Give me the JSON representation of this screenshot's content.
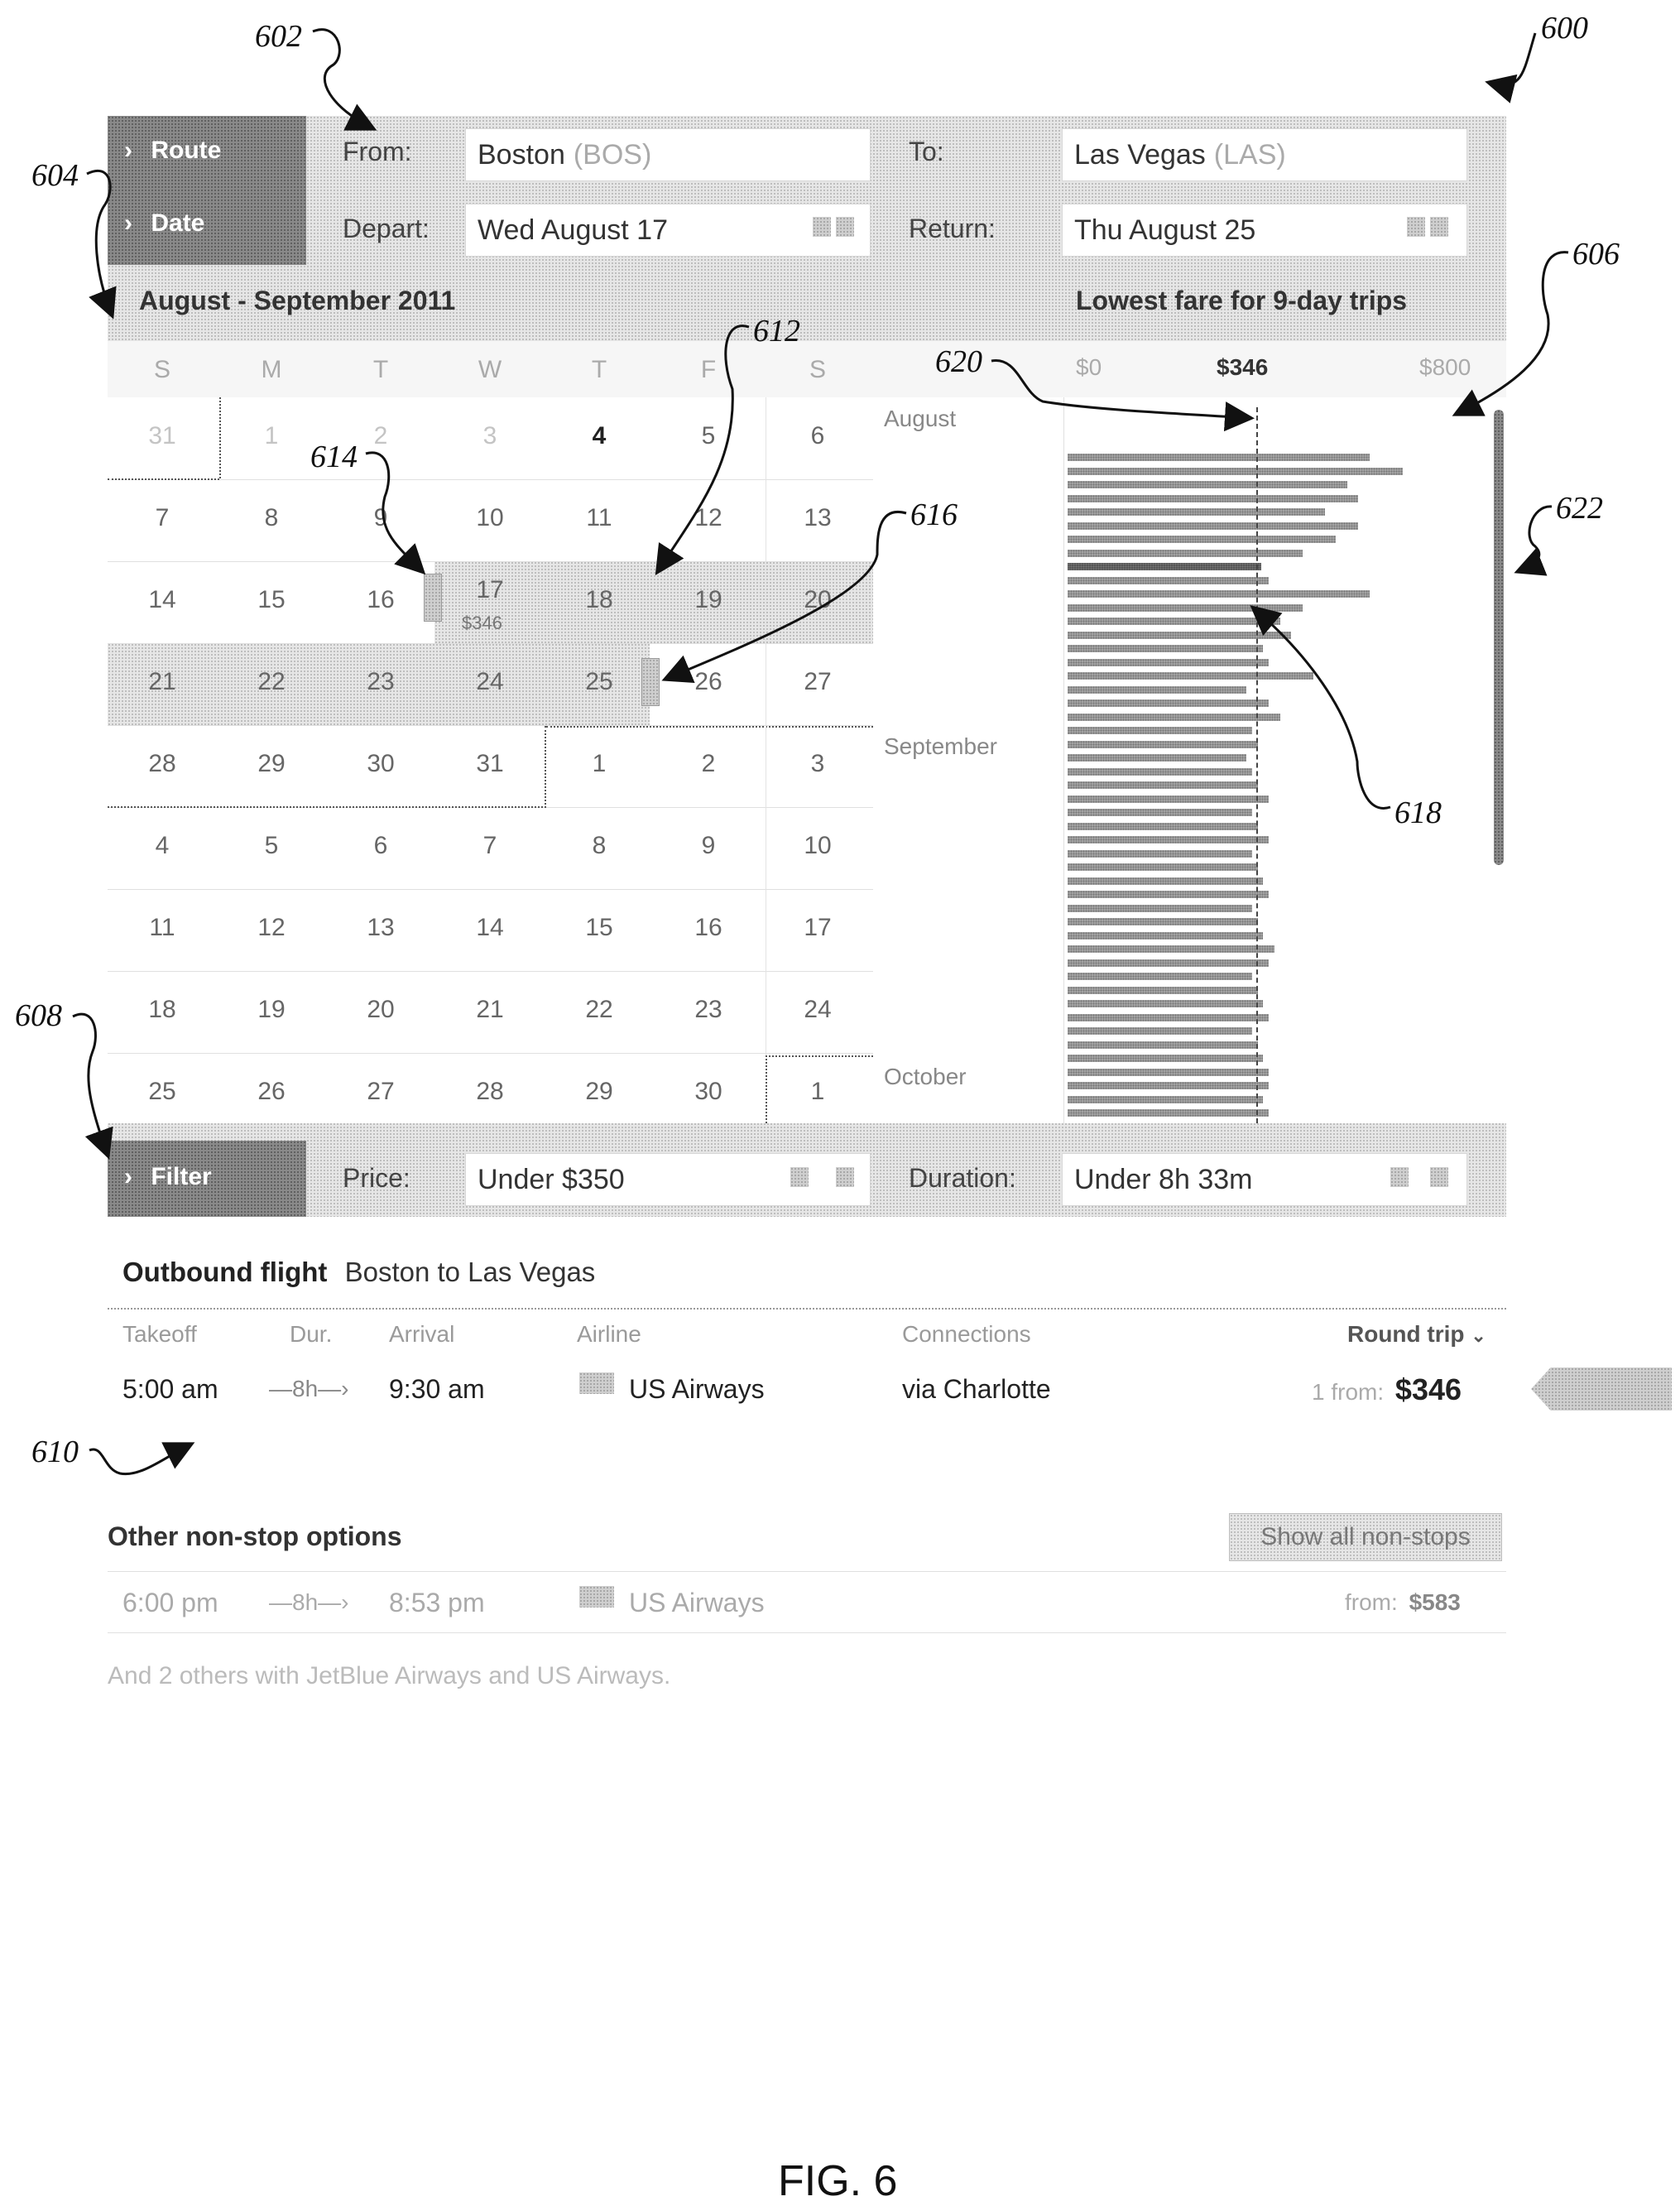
{
  "figure": {
    "number": "600",
    "caption": "FIG. 6"
  },
  "refs": {
    "r602": "602",
    "r604": "604",
    "r606": "606",
    "r608": "608",
    "r610": "610",
    "r612": "612",
    "r614": "614",
    "r616": "616",
    "r618": "618",
    "r620": "620",
    "r622": "622"
  },
  "search": {
    "route_tab": "Route",
    "date_tab": "Date",
    "from_label": "From:",
    "from_city": "Boston",
    "from_code": "(BOS)",
    "to_label": "To:",
    "to_city": "Las Vegas",
    "to_code": "(LAS)",
    "depart_label": "Depart:",
    "depart_value": "Wed August 17",
    "return_label": "Return:",
    "return_value": "Thu August 25"
  },
  "calendar": {
    "title": "August - September 2011",
    "weekdays": [
      "S",
      "M",
      "T",
      "W",
      "T",
      "F",
      "S"
    ],
    "rows": [
      [
        "31",
        "1",
        "2",
        "3",
        "4",
        "5",
        "6"
      ],
      [
        "7",
        "8",
        "9",
        "10",
        "11",
        "12",
        "13"
      ],
      [
        "14",
        "15",
        "16",
        "17",
        "18",
        "19",
        "20"
      ],
      [
        "21",
        "22",
        "23",
        "24",
        "25",
        "26",
        "27"
      ],
      [
        "28",
        "29",
        "30",
        "31",
        "1",
        "2",
        "3"
      ],
      [
        "4",
        "5",
        "6",
        "7",
        "8",
        "9",
        "10"
      ],
      [
        "11",
        "12",
        "13",
        "14",
        "15",
        "16",
        "17"
      ],
      [
        "18",
        "19",
        "20",
        "21",
        "22",
        "23",
        "24"
      ],
      [
        "25",
        "26",
        "27",
        "28",
        "29",
        "30",
        "1"
      ]
    ],
    "selected_price": "$346"
  },
  "fare_chart": {
    "title": "Lowest fare for 9-day trips",
    "axis_min": "$0",
    "axis_mid": "$346",
    "axis_max": "$800",
    "months": [
      "August",
      "September",
      "October"
    ]
  },
  "chart_data": {
    "type": "bar",
    "title": "Lowest fare for 9-day trips",
    "xlim": [
      0,
      800
    ],
    "reference_value": 346,
    "values": [
      540,
      600,
      500,
      520,
      460,
      520,
      480,
      420,
      346,
      360,
      540,
      420,
      380,
      400,
      350,
      360,
      440,
      320,
      360,
      380,
      330,
      340,
      320,
      330,
      340,
      360,
      330,
      340,
      360,
      330,
      340,
      350,
      360,
      330,
      340,
      350,
      370,
      360,
      330,
      340,
      350,
      360,
      330,
      340,
      350,
      360,
      360,
      350,
      360
    ]
  },
  "filters": {
    "filter_tab": "Filter",
    "price_label": "Price:",
    "price_value": "Under $350",
    "duration_label": "Duration:",
    "duration_value": "Under 8h 33m"
  },
  "outbound": {
    "heading_bold": "Outbound flight",
    "heading_rest": "Boston to Las Vegas",
    "columns": [
      "Takeoff",
      "Dur.",
      "Arrival",
      "Airline",
      "Connections"
    ],
    "round_trip": "Round trip",
    "takeoff": "5:00 am",
    "duration": "8h",
    "arrival": "9:30 am",
    "airline": "US Airways",
    "connections": "via Charlotte",
    "from_prefix": "1 from:",
    "price": "$346"
  },
  "other": {
    "heading": "Other non-stop options",
    "show_all": "Show all non-stops",
    "takeoff": "6:00 pm",
    "duration": "8h",
    "arrival": "8:53 pm",
    "airline": "US Airways",
    "from_prefix": "from:",
    "price": "$583",
    "more_text": "And 2 others with JetBlue Airways and US Airways."
  },
  "colors": {
    "accent_dots": "#8a8a8a",
    "panel": "#e6e6e6",
    "bar": "#9a9a9a"
  }
}
